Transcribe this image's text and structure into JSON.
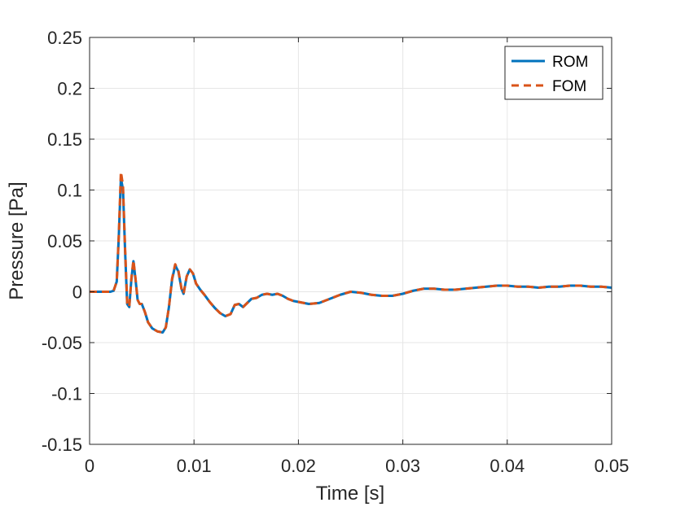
{
  "chart_data": {
    "type": "line",
    "title": "",
    "xlabel": "Time [s]",
    "ylabel": "Pressure [Pa]",
    "xlim": [
      0,
      0.05
    ],
    "ylim": [
      -0.15,
      0.25
    ],
    "grid": true,
    "legend_position": "top-right",
    "x_ticks": [
      {
        "value": 0,
        "label": "0"
      },
      {
        "value": 0.01,
        "label": "0.01"
      },
      {
        "value": 0.02,
        "label": "0.02"
      },
      {
        "value": 0.03,
        "label": "0.03"
      },
      {
        "value": 0.04,
        "label": "0.04"
      },
      {
        "value": 0.05,
        "label": "0.05"
      }
    ],
    "y_ticks": [
      {
        "value": -0.15,
        "label": "-0.15"
      },
      {
        "value": -0.1,
        "label": "-0.1"
      },
      {
        "value": -0.05,
        "label": "-0.05"
      },
      {
        "value": 0,
        "label": "0"
      },
      {
        "value": 0.05,
        "label": "0.05"
      },
      {
        "value": 0.1,
        "label": "0.1"
      },
      {
        "value": 0.15,
        "label": "0.15"
      },
      {
        "value": 0.2,
        "label": "0.2"
      },
      {
        "value": 0.25,
        "label": "0.25"
      }
    ],
    "series": [
      {
        "name": "ROM",
        "color": "#0072BD",
        "style": "solid",
        "x": [
          0,
          0.002,
          0.0023,
          0.0026,
          0.0028,
          0.003,
          0.0032,
          0.0034,
          0.0036,
          0.0038,
          0.004,
          0.0042,
          0.0044,
          0.0046,
          0.0048,
          0.005,
          0.0053,
          0.0056,
          0.006,
          0.0065,
          0.007,
          0.0073,
          0.0076,
          0.0079,
          0.0082,
          0.0085,
          0.0088,
          0.009,
          0.0093,
          0.0096,
          0.0099,
          0.0102,
          0.0106,
          0.011,
          0.0115,
          0.012,
          0.0125,
          0.013,
          0.0135,
          0.0139,
          0.0143,
          0.0147,
          0.015,
          0.0155,
          0.016,
          0.0165,
          0.017,
          0.0175,
          0.018,
          0.0185,
          0.019,
          0.0195,
          0.02,
          0.0205,
          0.021,
          0.022,
          0.023,
          0.024,
          0.025,
          0.026,
          0.027,
          0.028,
          0.029,
          0.03,
          0.031,
          0.032,
          0.033,
          0.034,
          0.035,
          0.036,
          0.037,
          0.038,
          0.039,
          0.04,
          0.041,
          0.042,
          0.043,
          0.044,
          0.045,
          0.046,
          0.047,
          0.048,
          0.049,
          0.05
        ],
        "y": [
          0,
          0,
          0.001,
          0.01,
          0.055,
          0.112,
          0.1,
          0.04,
          -0.012,
          -0.015,
          0.012,
          0.03,
          0.012,
          -0.008,
          -0.012,
          -0.012,
          -0.02,
          -0.03,
          -0.036,
          -0.039,
          -0.04,
          -0.035,
          -0.015,
          0.012,
          0.026,
          0.02,
          0.003,
          -0.002,
          0.015,
          0.022,
          0.018,
          0.008,
          0.002,
          -0.003,
          -0.01,
          -0.016,
          -0.021,
          -0.024,
          -0.022,
          -0.013,
          -0.012,
          -0.015,
          -0.012,
          -0.007,
          -0.006,
          -0.003,
          -0.002,
          -0.003,
          -0.002,
          -0.004,
          -0.007,
          -0.009,
          -0.01,
          -0.011,
          -0.012,
          -0.011,
          -0.007,
          -0.003,
          0.0,
          -0.001,
          -0.003,
          -0.004,
          -0.004,
          -0.002,
          0.001,
          0.003,
          0.003,
          0.002,
          0.002,
          0.003,
          0.004,
          0.005,
          0.006,
          0.006,
          0.005,
          0.005,
          0.004,
          0.005,
          0.005,
          0.006,
          0.006,
          0.005,
          0.005,
          0.004
        ]
      },
      {
        "name": "FOM",
        "color": "#D95319",
        "style": "dashed",
        "x": [
          0,
          0.002,
          0.0023,
          0.0026,
          0.0028,
          0.003,
          0.0032,
          0.0034,
          0.0036,
          0.0038,
          0.004,
          0.0042,
          0.0044,
          0.0046,
          0.0048,
          0.005,
          0.0053,
          0.0056,
          0.006,
          0.0065,
          0.007,
          0.0073,
          0.0076,
          0.0079,
          0.0082,
          0.0085,
          0.0088,
          0.009,
          0.0093,
          0.0096,
          0.0099,
          0.0102,
          0.0106,
          0.011,
          0.0115,
          0.012,
          0.0125,
          0.013,
          0.0135,
          0.0139,
          0.0143,
          0.0147,
          0.015,
          0.0155,
          0.016,
          0.0165,
          0.017,
          0.0175,
          0.018,
          0.0185,
          0.019,
          0.0195,
          0.02,
          0.0205,
          0.021,
          0.022,
          0.023,
          0.024,
          0.025,
          0.026,
          0.027,
          0.028,
          0.029,
          0.03,
          0.031,
          0.032,
          0.033,
          0.034,
          0.035,
          0.036,
          0.037,
          0.038,
          0.039,
          0.04,
          0.041,
          0.042,
          0.043,
          0.044,
          0.045,
          0.046,
          0.047,
          0.048,
          0.049,
          0.05
        ],
        "y": [
          0,
          0,
          0.001,
          0.01,
          0.056,
          0.118,
          0.104,
          0.042,
          -0.011,
          -0.015,
          0.013,
          0.031,
          0.013,
          -0.008,
          -0.012,
          -0.012,
          -0.02,
          -0.03,
          -0.036,
          -0.039,
          -0.04,
          -0.035,
          -0.015,
          0.013,
          0.027,
          0.021,
          0.003,
          -0.002,
          0.015,
          0.022,
          0.018,
          0.008,
          0.002,
          -0.003,
          -0.01,
          -0.016,
          -0.021,
          -0.024,
          -0.022,
          -0.013,
          -0.012,
          -0.015,
          -0.012,
          -0.007,
          -0.006,
          -0.003,
          -0.002,
          -0.003,
          -0.002,
          -0.004,
          -0.007,
          -0.009,
          -0.01,
          -0.011,
          -0.012,
          -0.011,
          -0.007,
          -0.003,
          0.0,
          -0.001,
          -0.003,
          -0.004,
          -0.004,
          -0.002,
          0.001,
          0.003,
          0.003,
          0.002,
          0.002,
          0.003,
          0.004,
          0.005,
          0.006,
          0.006,
          0.005,
          0.005,
          0.004,
          0.005,
          0.005,
          0.006,
          0.006,
          0.005,
          0.005,
          0.004
        ]
      }
    ]
  }
}
